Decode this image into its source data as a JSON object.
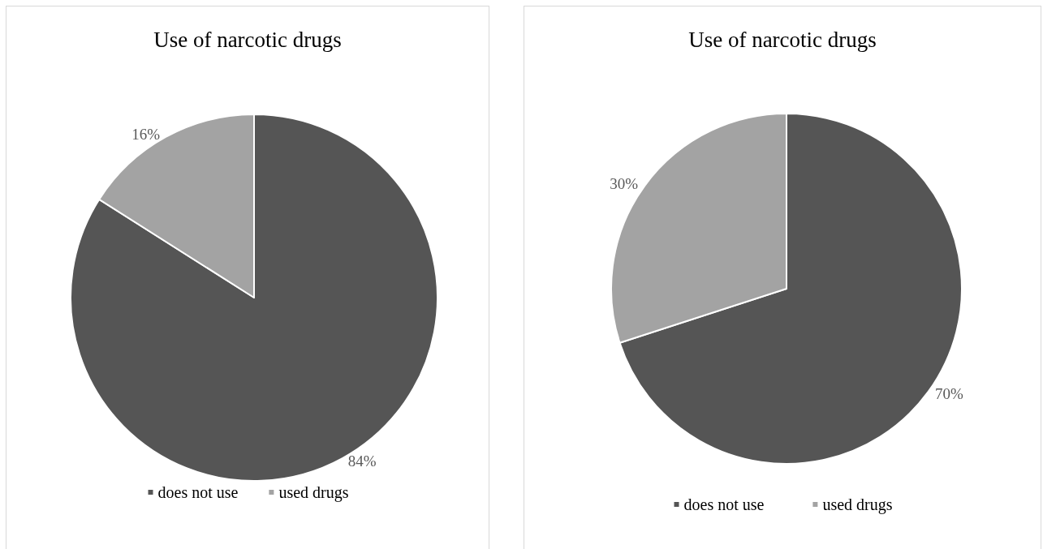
{
  "chart_data": [
    {
      "type": "pie",
      "title": "Use of narcotic drugs",
      "categories": [
        "does not use",
        "used drugs"
      ],
      "values": [
        84,
        16
      ],
      "colors": [
        "#555555",
        "#a3a3a3"
      ],
      "value_labels": [
        "84%",
        "16%"
      ],
      "legend": "bottom"
    },
    {
      "type": "pie",
      "title": "Use of narcotic drugs",
      "categories": [
        "does not use",
        "used drugs"
      ],
      "values": [
        70,
        30
      ],
      "colors": [
        "#555555",
        "#a3a3a3"
      ],
      "value_labels": [
        "70%",
        "30%"
      ],
      "legend": "bottom"
    }
  ]
}
